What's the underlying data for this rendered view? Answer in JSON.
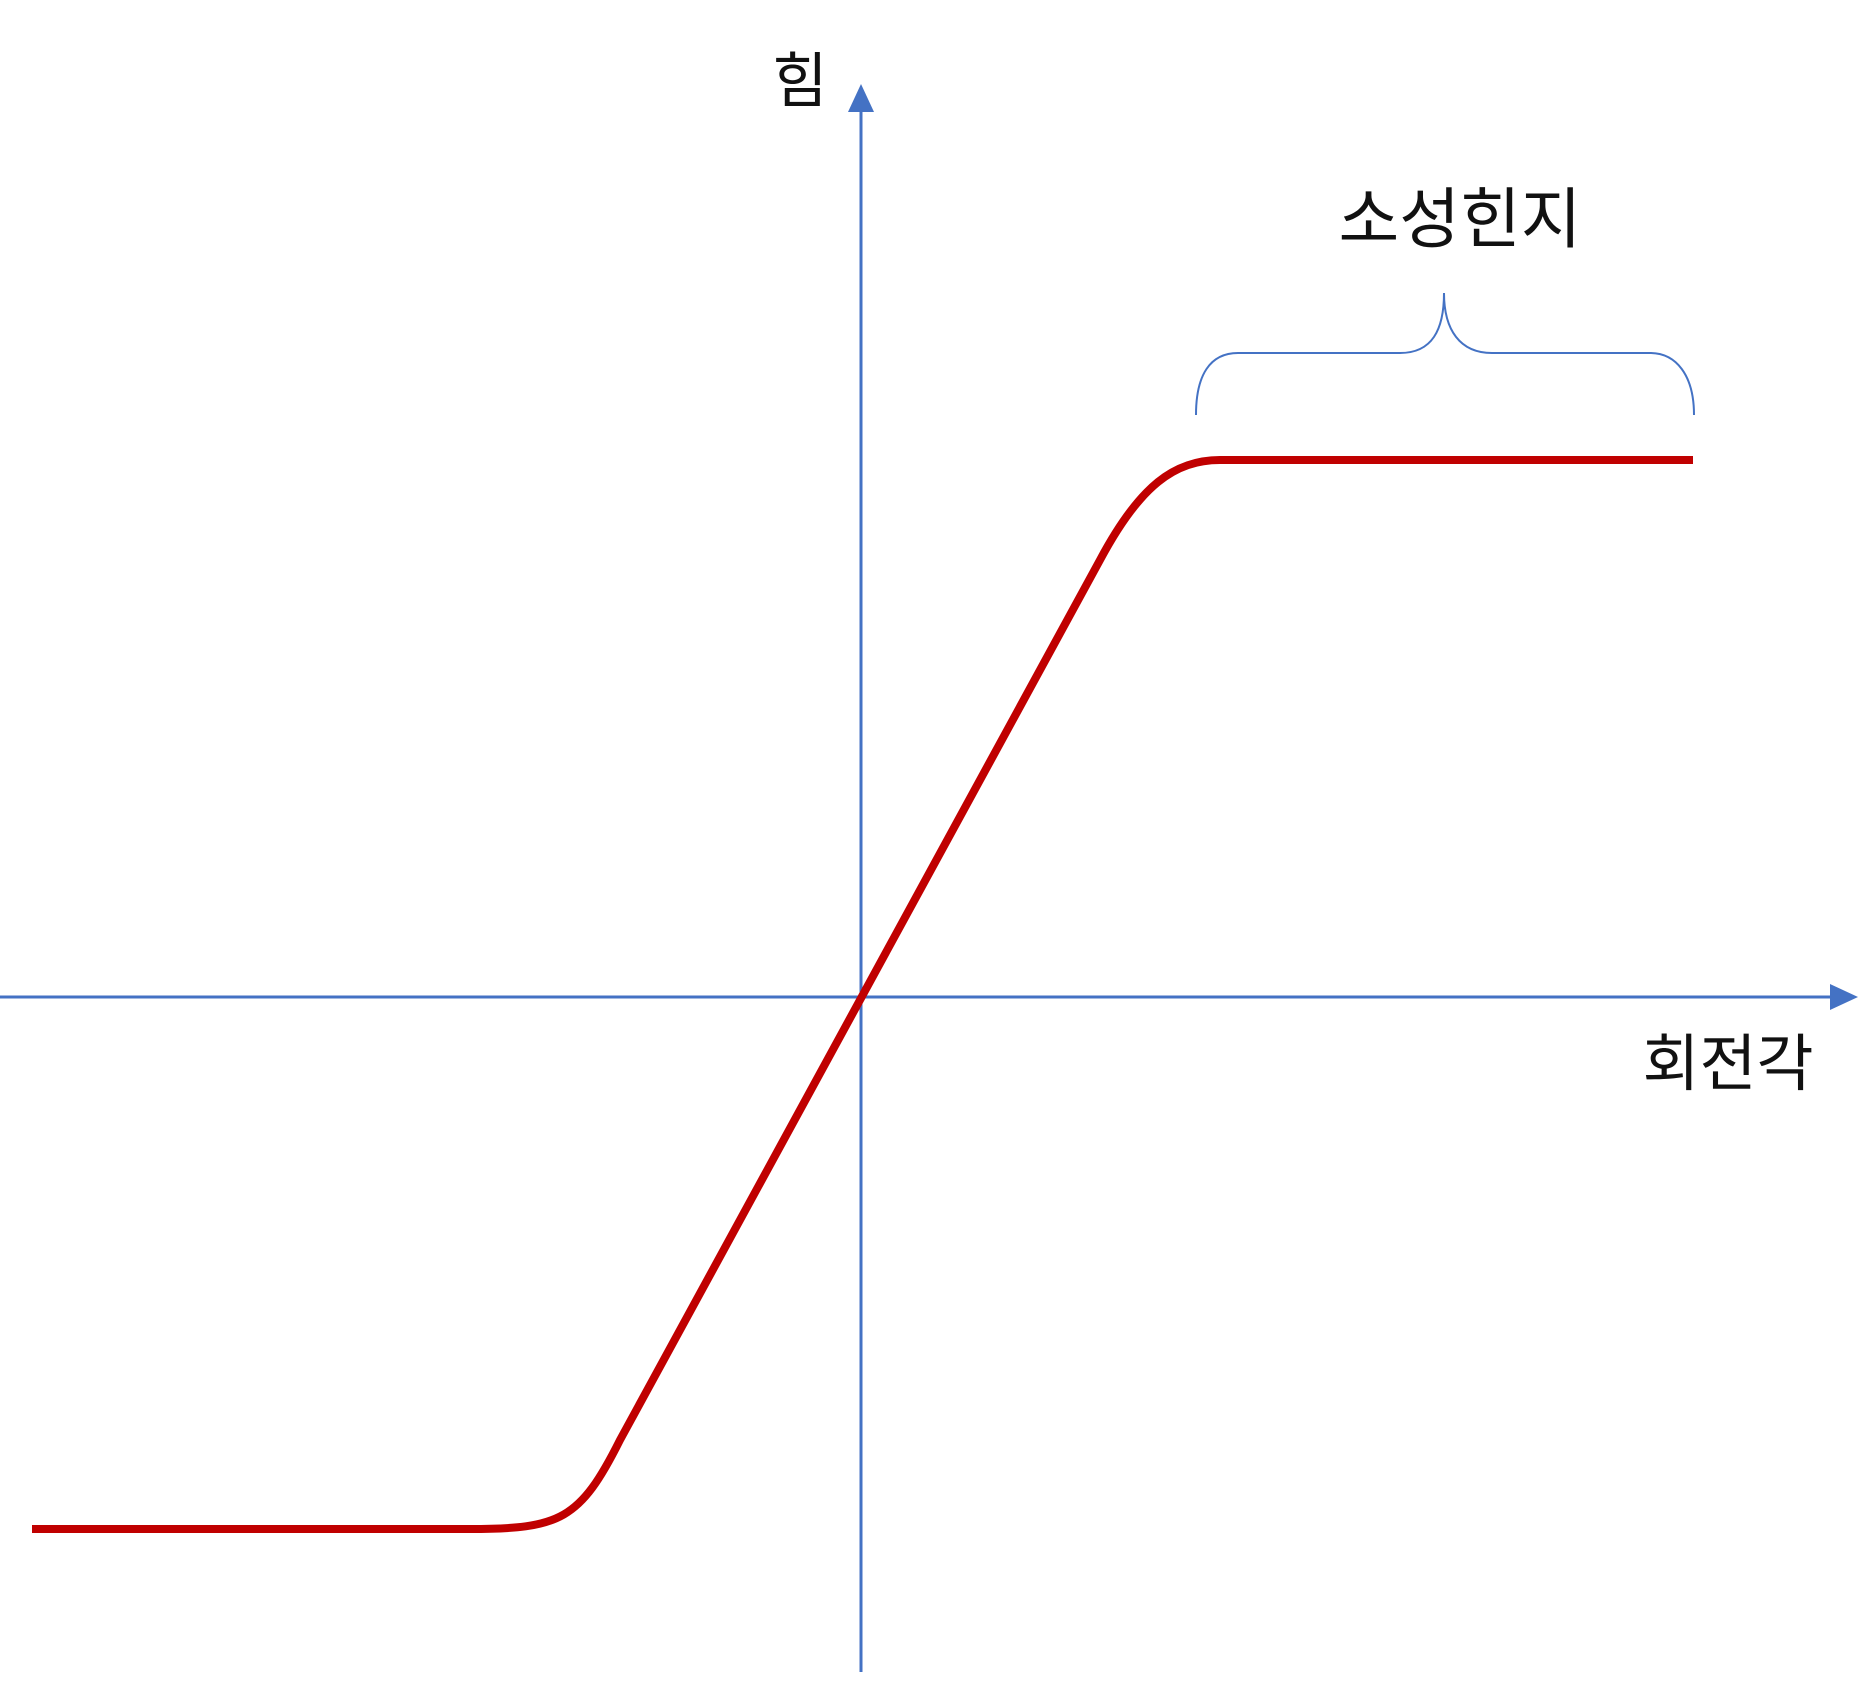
{
  "labels": {
    "y_axis": "힘",
    "x_axis": "회전각",
    "annotation": "소성힌지"
  },
  "colors": {
    "axis": "#4472C4",
    "curve": "#C00000",
    "brace": "#4472C4",
    "text": "#111111"
  }
}
